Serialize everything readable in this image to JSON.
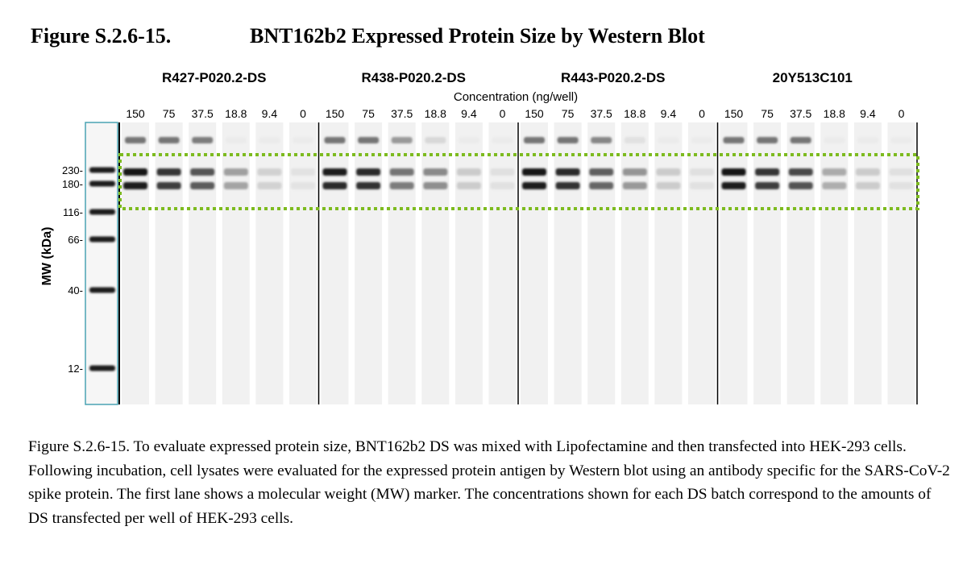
{
  "figure": {
    "number": "Figure S.2.6-15.",
    "title": "BNT162b2 Expressed Protein Size by Western Blot"
  },
  "blot": {
    "y_axis_label": "MW (kDa)",
    "concentration_label": "Concentration (ng/well)",
    "mw_markers": [
      {
        "label": "230-",
        "kda": 230
      },
      {
        "label": "180-",
        "kda": 180
      },
      {
        "label": "116-",
        "kda": 116
      },
      {
        "label": "66-",
        "kda": 66
      },
      {
        "label": "40-",
        "kda": 40
      },
      {
        "label": "12-",
        "kda": 12
      }
    ],
    "batches": [
      {
        "name": "R427-P020.2-DS",
        "concentrations": [
          "150",
          "75",
          "37.5",
          "18.8",
          "9.4",
          "0"
        ],
        "intensities": [
          1.0,
          0.85,
          0.7,
          0.35,
          0.12,
          0.04
        ]
      },
      {
        "name": "R438-P020.2-DS",
        "concentrations": [
          "150",
          "75",
          "37.5",
          "18.8",
          "9.4",
          "0"
        ],
        "intensities": [
          0.95,
          0.9,
          0.55,
          0.45,
          0.15,
          0.05
        ]
      },
      {
        "name": "R443-P020.2-DS",
        "concentrations": [
          "150",
          "75",
          "37.5",
          "18.8",
          "9.4",
          "0"
        ],
        "intensities": [
          1.0,
          0.9,
          0.65,
          0.4,
          0.15,
          0.05
        ]
      },
      {
        "name": "20Y513C101",
        "concentrations": [
          "150",
          "75",
          "37.5",
          "18.8",
          "9.4",
          "0"
        ],
        "intensities": [
          1.0,
          0.85,
          0.75,
          0.3,
          0.15,
          0.05
        ]
      }
    ],
    "highlight_color": "#7dbb1f"
  },
  "caption": "Figure S.2.6-15.  To evaluate expressed protein size, BNT162b2 DS was mixed with Lipofectamine and then transfected into HEK-293 cells.  Following incubation, cell lysates were evaluated for the expressed protein antigen by Western blot using an antibody specific for the SARS-CoV-2 spike protein.  The first lane shows a molecular weight (MW) marker.  The concentrations shown for each DS batch correspond to the amounts of DS transfected per well of HEK-293 cells."
}
